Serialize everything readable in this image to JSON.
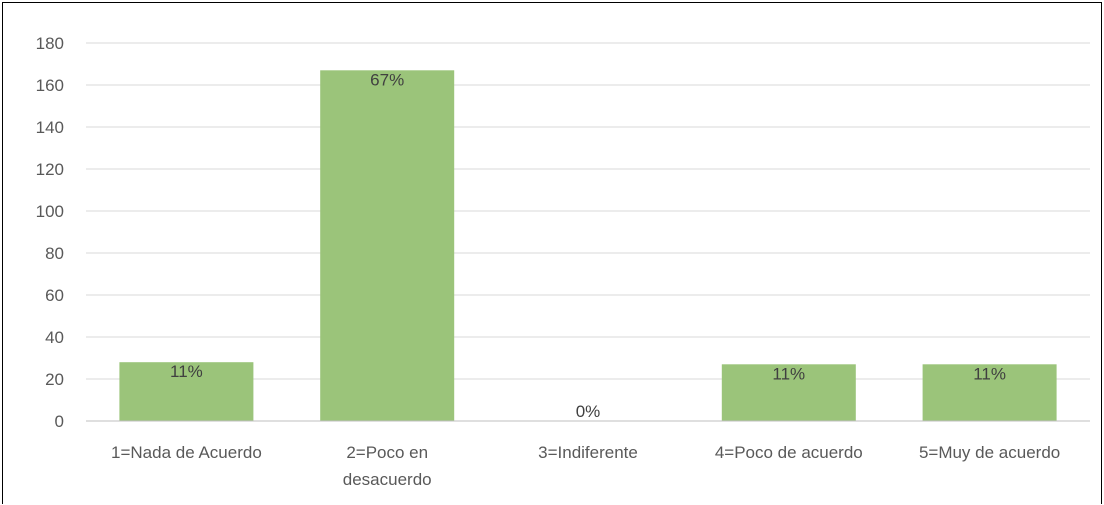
{
  "chart_data": {
    "type": "bar",
    "categories": [
      "1=Nada de Acuerdo",
      "2=Poco en desacuerdo",
      "3=Indiferente",
      "4=Poco de acuerdo",
      "5=Muy de acuerdo"
    ],
    "category_lines": [
      [
        "1=Nada de Acuerdo"
      ],
      [
        "2=Poco en",
        "desacuerdo"
      ],
      [
        "3=Indiferente"
      ],
      [
        "4=Poco de acuerdo"
      ],
      [
        "5=Muy de acuerdo"
      ]
    ],
    "values": [
      28,
      167,
      0,
      27,
      27
    ],
    "data_labels": [
      "11%",
      "67%",
      "0%",
      "11%",
      "11%"
    ],
    "ylim": [
      0,
      180
    ],
    "yticks": [
      0,
      20,
      40,
      60,
      80,
      100,
      120,
      140,
      160,
      180
    ],
    "grid": true,
    "title": "",
    "xlabel": "",
    "ylabel": "",
    "colors": {
      "bar": "#9bc47a",
      "grid": "#d9d9d9",
      "axis": "#bfbfbf",
      "text": "#595959"
    }
  }
}
